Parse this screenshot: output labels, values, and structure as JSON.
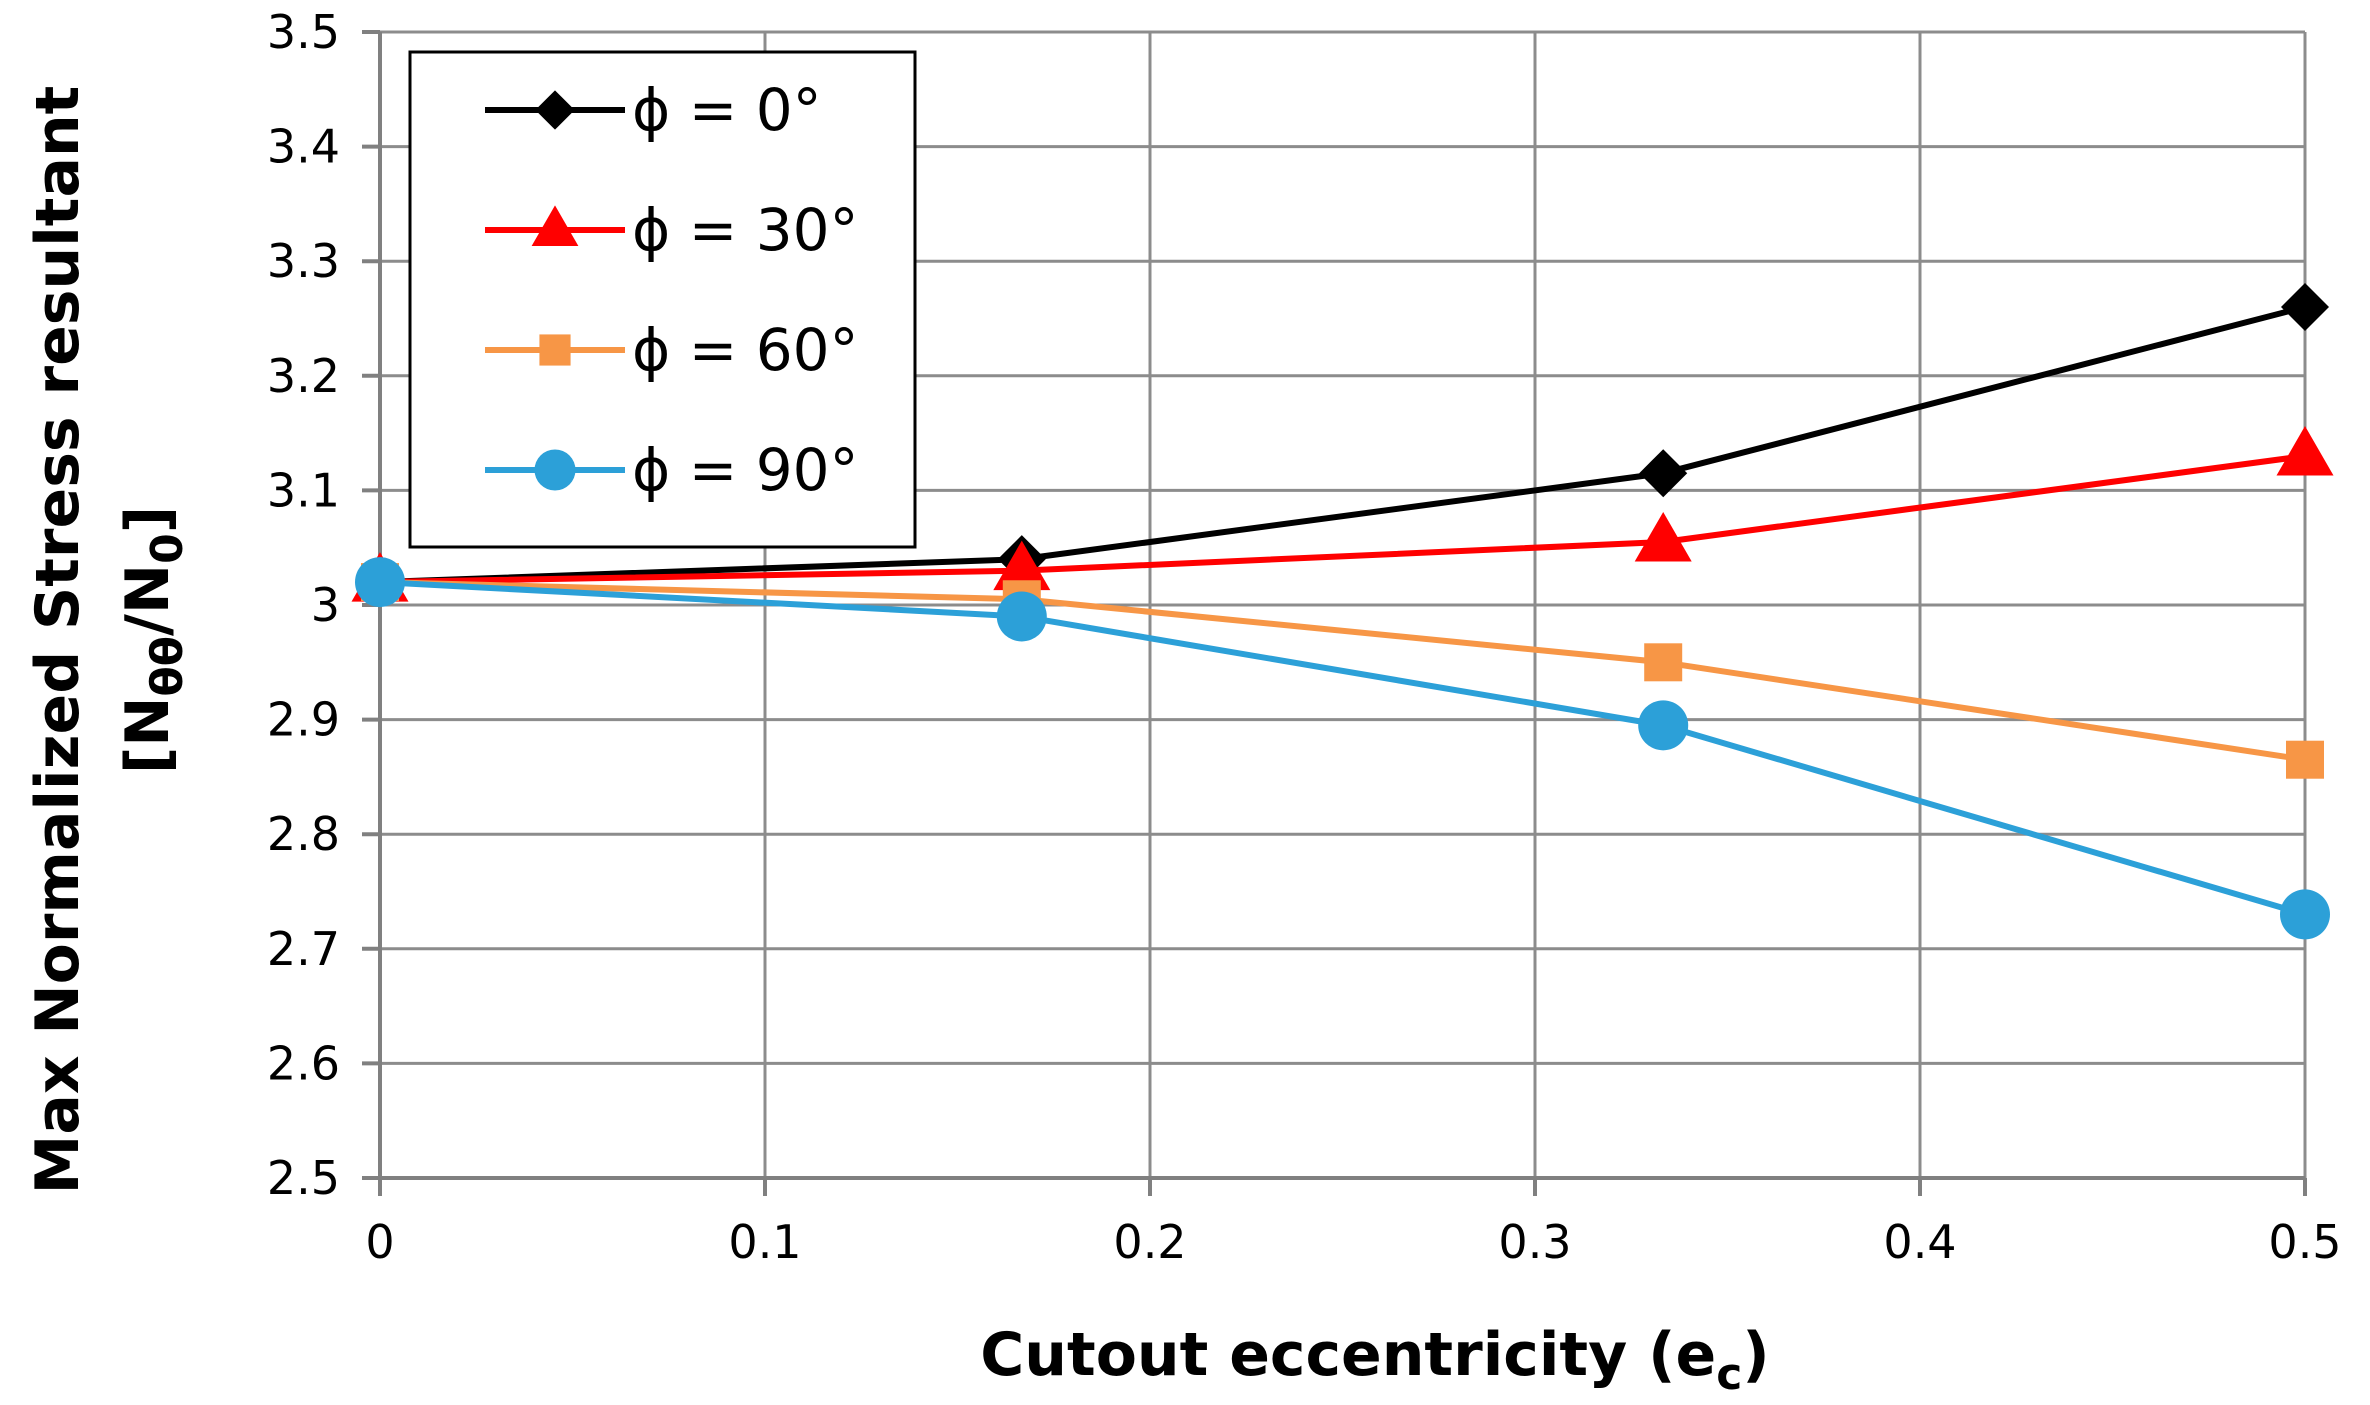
{
  "chart_data": {
    "type": "line",
    "title": "",
    "xlabel": {
      "main": "Cutout eccentricity (e",
      "sub": "c",
      "close": ")"
    },
    "ylabel": {
      "line1": "Max Normalized Stress resultant",
      "line2_open": "[N",
      "line2_sub1": "θθ",
      "line2_mid": "/N",
      "line2_sub2": "0",
      "line2_close": "]"
    },
    "xlim": [
      0,
      0.5
    ],
    "ylim": [
      2.5,
      3.5
    ],
    "x_ticks": [
      0,
      0.1,
      0.2,
      0.3,
      0.4,
      0.5
    ],
    "x_tick_labels": [
      "0",
      "0.1",
      "0.2",
      "0.3",
      "0.4",
      "0.5"
    ],
    "y_ticks": [
      2.5,
      2.6,
      2.7,
      2.8,
      2.9,
      3.0,
      3.1,
      3.2,
      3.3,
      3.4,
      3.5
    ],
    "y_tick_labels": [
      "2.5",
      "2.6",
      "2.7",
      "2.8",
      "2.9",
      "3",
      "3.1",
      "3.2",
      "3.3",
      "3.4",
      "3.5"
    ],
    "grid": true,
    "legend_position": "top-left",
    "x": [
      0,
      0.1667,
      0.3333,
      0.5
    ],
    "series": [
      {
        "name": "ϕ = 0°",
        "color": "#000000",
        "marker": "diamond",
        "values": [
          3.02,
          3.04,
          3.115,
          3.26
        ]
      },
      {
        "name": "ϕ = 30°",
        "color": "#ff0000",
        "marker": "triangle",
        "values": [
          3.02,
          3.03,
          3.055,
          3.13
        ]
      },
      {
        "name": "ϕ = 60°",
        "color": "#f79646",
        "marker": "square",
        "values": [
          3.02,
          3.005,
          2.95,
          2.865
        ]
      },
      {
        "name": "ϕ = 90°",
        "color": "#2ca0d8",
        "marker": "circle",
        "values": [
          3.02,
          2.99,
          2.895,
          2.73
        ]
      }
    ]
  }
}
